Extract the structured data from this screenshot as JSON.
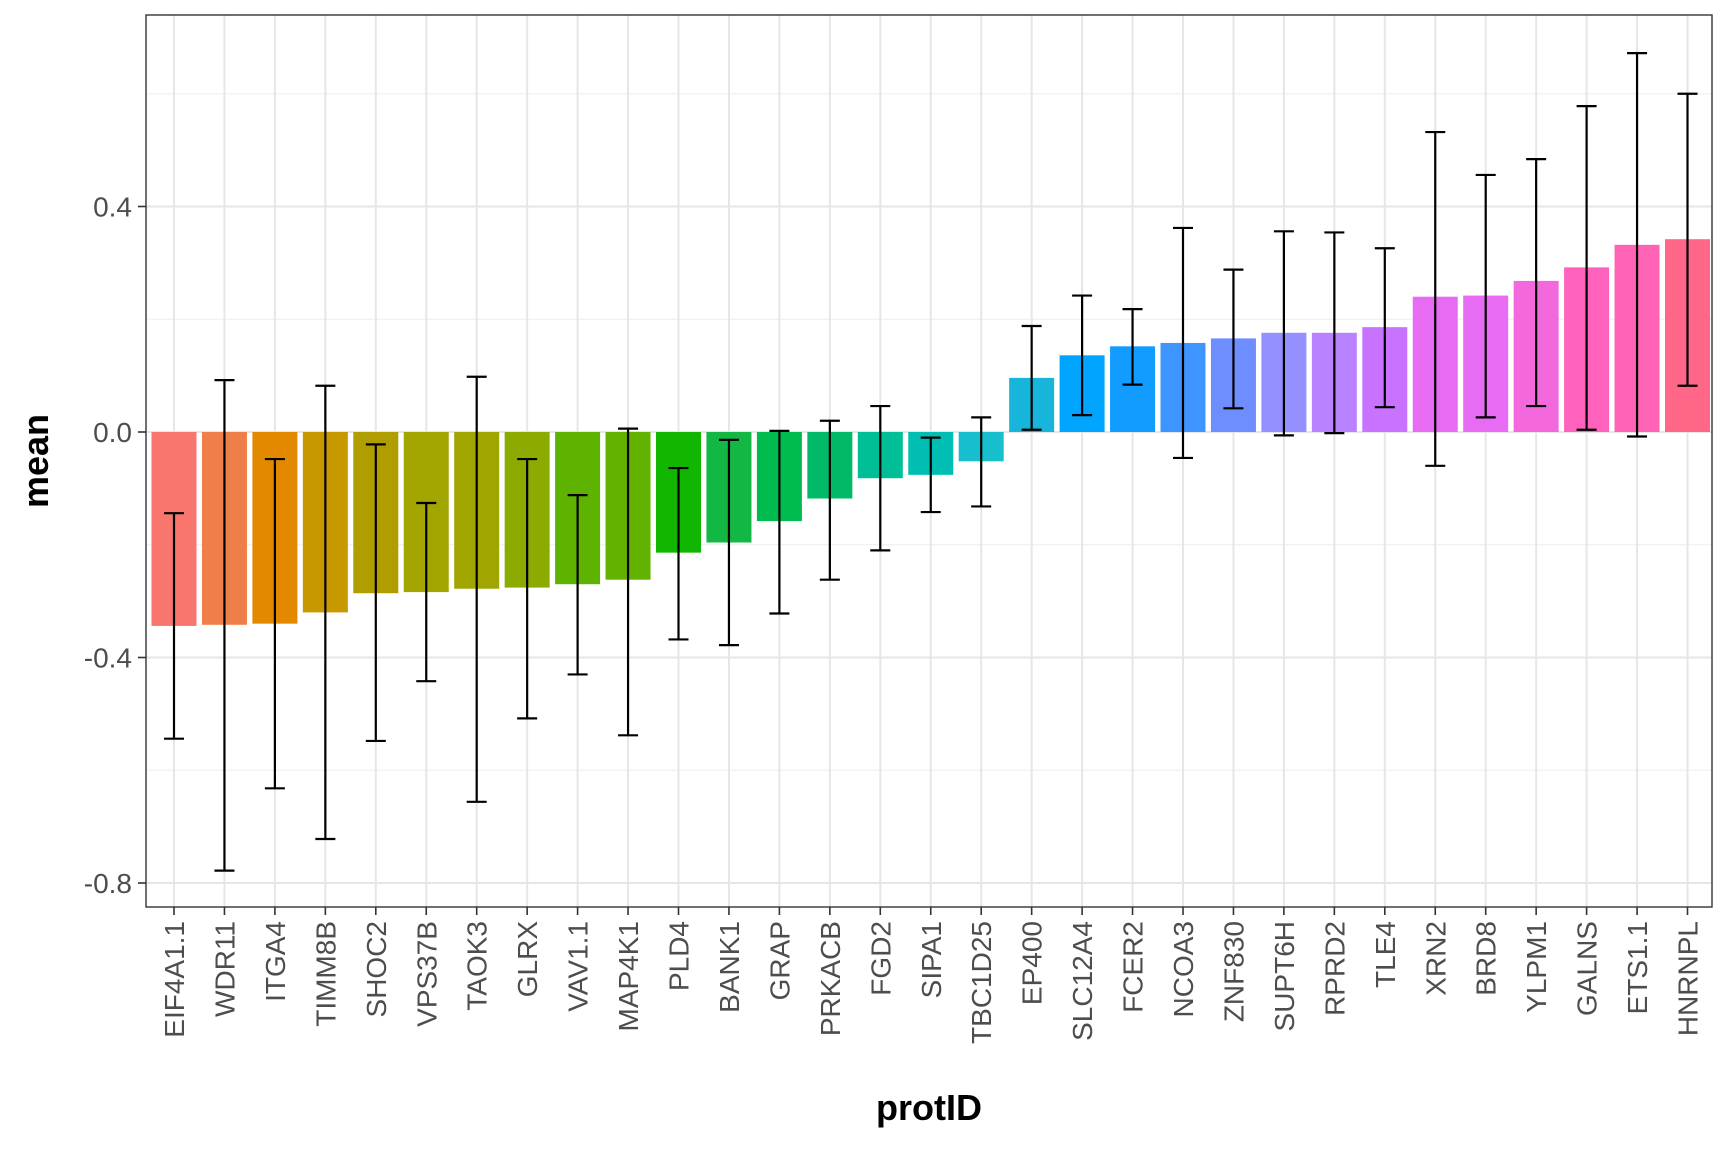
{
  "chart_data": {
    "type": "bar",
    "xlabel": "protID",
    "ylabel": "mean",
    "ylim": [
      -0.84,
      0.75
    ],
    "yticks": [
      -0.8,
      -0.4,
      0.0,
      0.4
    ],
    "ytick_labels": [
      "-0.8",
      "-0.4",
      "0.0",
      "0.4"
    ],
    "grid": true,
    "legend": "none",
    "categories": [
      "EIF4A1.1",
      "WDR11",
      "ITGA4",
      "TIMM8B",
      "SHOC2",
      "VPS37B",
      "TAOK3",
      "GLRX",
      "VAV1.1",
      "MAP4K1",
      "PLD4",
      "BANK1",
      "GRAP",
      "PRKACB",
      "FGD2",
      "SIPA1",
      "TBC1D25",
      "EP400",
      "SLC12A4",
      "FCER2",
      "NCOA3",
      "ZNF830",
      "SUPT6H",
      "RPRD2",
      "TLE4",
      "XRN2",
      "BRD8",
      "YLPM1",
      "GALNS",
      "ETS1.1",
      "HNRNPL"
    ],
    "values": [
      -0.344,
      -0.342,
      -0.34,
      -0.32,
      -0.286,
      -0.284,
      -0.278,
      -0.276,
      -0.27,
      -0.262,
      -0.214,
      -0.196,
      -0.158,
      -0.118,
      -0.082,
      -0.076,
      -0.052,
      0.096,
      0.136,
      0.152,
      0.158,
      0.166,
      0.176,
      0.176,
      0.186,
      0.24,
      0.242,
      0.268,
      0.292,
      0.332,
      0.342
    ],
    "error_low": [
      -0.544,
      -0.778,
      -0.632,
      -0.722,
      -0.548,
      -0.442,
      -0.656,
      -0.508,
      -0.43,
      -0.538,
      -0.368,
      -0.378,
      -0.322,
      -0.262,
      -0.21,
      -0.142,
      -0.132,
      0.004,
      0.03,
      0.084,
      -0.046,
      0.042,
      -0.006,
      -0.002,
      0.044,
      -0.06,
      0.026,
      0.046,
      0.004,
      -0.008,
      0.082
    ],
    "error_high": [
      -0.144,
      0.092,
      -0.048,
      0.082,
      -0.022,
      -0.126,
      0.098,
      -0.048,
      -0.112,
      0.006,
      -0.064,
      -0.014,
      0.002,
      0.02,
      0.046,
      -0.01,
      0.026,
      0.188,
      0.242,
      0.218,
      0.362,
      0.288,
      0.356,
      0.354,
      0.326,
      0.532,
      0.456,
      0.484,
      0.578,
      0.672,
      0.6
    ],
    "colors": [
      "#F8766D",
      "#EF7F49",
      "#E38900",
      "#C79800",
      "#B09E00",
      "#A3A500",
      "#A1A500",
      "#8CAB00",
      "#5EB300",
      "#64B200",
      "#11B600",
      "#12B744",
      "#00BB4E",
      "#00BA67",
      "#00BF96",
      "#00BEB2",
      "#17BECE",
      "#18B5DB",
      "#00A5FF",
      "#139CFF",
      "#3F95FF",
      "#6E8DFF",
      "#9590FF",
      "#B983FF",
      "#C873FF",
      "#E76BF3",
      "#E76BF3",
      "#F368DD",
      "#FF62BC",
      "#FF63B6",
      "#FF6687"
    ]
  }
}
